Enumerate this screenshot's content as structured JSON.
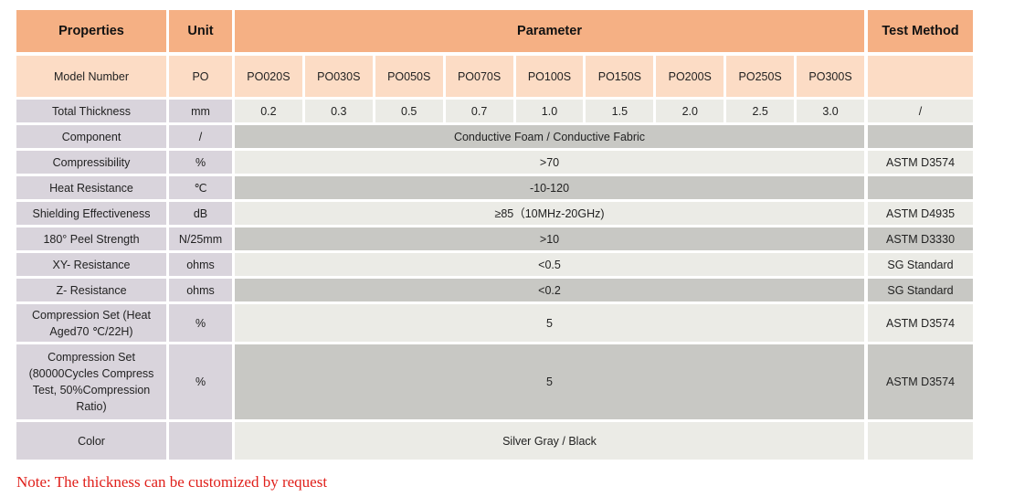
{
  "header": {
    "properties": "Properties",
    "unit": "Unit",
    "parameter": "Parameter",
    "test_method": "Test Method"
  },
  "model_row": {
    "label": "Model Number",
    "unit": "PO",
    "models": [
      "PO020S",
      "PO030S",
      "PO050S",
      "PO070S",
      "PO100S",
      "PO150S",
      "PO200S",
      "PO250S",
      "PO300S"
    ],
    "test": ""
  },
  "thickness_row": {
    "label": "Total Thickness",
    "unit": "mm",
    "values": [
      "0.2",
      "0.3",
      "0.5",
      "0.7",
      "1.0",
      "1.5",
      "2.0",
      "2.5",
      "3.0"
    ],
    "test": "/"
  },
  "rows": [
    {
      "label": "Component",
      "unit": "/",
      "value": "Conductive Foam / Conductive Fabric",
      "test": ""
    },
    {
      "label": "Compressibility",
      "unit": "%",
      "value": ">70",
      "test": "ASTM D3574"
    },
    {
      "label": "Heat Resistance",
      "unit": "℃",
      "value": "-10-120",
      "test": ""
    },
    {
      "label": "Shielding Effectiveness",
      "unit": "dB",
      "value": "≥85（10MHz-20GHz)",
      "test": "ASTM D4935"
    },
    {
      "label": "180° Peel Strength",
      "unit": "N/25mm",
      "value": ">10",
      "test": "ASTM D3330"
    },
    {
      "label": "XY- Resistance",
      "unit": "ohms",
      "value": "<0.5",
      "test": "SG Standard"
    },
    {
      "label": "Z- Resistance",
      "unit": "ohms",
      "value": "<0.2",
      "test": "SG Standard"
    },
    {
      "label": "Compression Set (Heat Aged70 ℃/22H)",
      "unit": "%",
      "value": "5",
      "test": "ASTM D3574"
    },
    {
      "label": "Compression Set (80000Cycles Compress Test, 50%Compression Ratio)",
      "unit": "%",
      "value": "5",
      "test": "ASTM D3574"
    },
    {
      "label": "Color",
      "unit": "",
      "value": "Silver Gray / Black",
      "test": ""
    }
  ],
  "note": "Note: The thickness can be customized by request",
  "colors": {
    "header": "#f5b084",
    "model_row": "#fcdcc5",
    "property_col": "#d9d4dc",
    "light": "#ebebe6",
    "dark": "#c8c8c4",
    "note": "#e0201b"
  }
}
